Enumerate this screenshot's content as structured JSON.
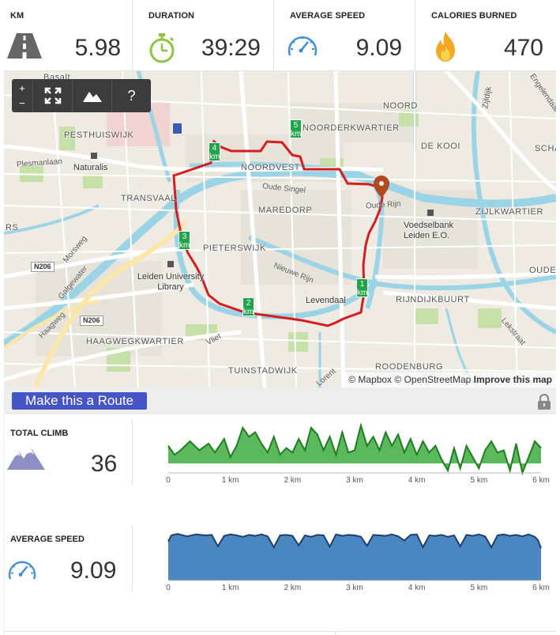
{
  "stats": {
    "km": {
      "label": "KM",
      "value": "5.98",
      "icon": "road-icon"
    },
    "duration": {
      "label": "DURATION",
      "value": "39:29",
      "icon": "stopwatch-icon"
    },
    "avg_speed": {
      "label": "AVERAGE SPEED",
      "value": "9.09",
      "icon": "speedometer-icon"
    },
    "calories": {
      "label": "CALORIES BURNED",
      "value": "470",
      "icon": "flame-icon"
    }
  },
  "map": {
    "controls": {
      "zoom_in": "+",
      "zoom_out": "−",
      "help": "?"
    },
    "attribution": {
      "mapbox": "© Mapbox",
      "osm": "© OpenStreetMap",
      "improve": "Improve this map"
    },
    "neighborhoods": [
      "PESTHUISWIJK",
      "NOORDERKWARTIER",
      "DE KOOI",
      "NOORDVEST",
      "TRANSVAAL",
      "MAREDORP",
      "ZIJLKWARTIER",
      "PIETERSWIJK",
      "RIJNDIJKBUURT",
      "HAAGWEGKWARTIER",
      "TUINSTADWIJK",
      "ROODENBURG",
      "NOORD",
      "SCHA",
      "OUDE",
      "RS"
    ],
    "places": [
      "Naturalis",
      "Leiden University Library",
      "Levendaal",
      "Voedselbank Leiden E.O.",
      "Basalt"
    ],
    "roads": [
      "Plesmanlaan",
      "Oude Singel",
      "Oude Rijn",
      "Nieuwe Rijn",
      "Morsweg",
      "Galgewater",
      "Haagweg",
      "Vliet",
      "Zijldijk",
      "Engelendaal",
      "Lorent",
      "Lekstraat"
    ],
    "shields": [
      "N206",
      "N206"
    ],
    "km_markers": [
      "1",
      "2",
      "3",
      "4",
      "5"
    ],
    "km_unit": "km"
  },
  "route_button": "Make this a Route",
  "climb": {
    "label": "TOTAL CLIMB",
    "value": "36",
    "icon": "mountain-icon"
  },
  "speed": {
    "label": "AVERAGE SPEED",
    "value": "9.09",
    "icon": "speedometer-icon"
  },
  "chart_data": [
    {
      "type": "area",
      "xlabel": "",
      "ylabel": "",
      "x_ticks": [
        "0",
        "1 km",
        "2 km",
        "3 km",
        "4 km",
        "5 km",
        "6 km"
      ],
      "xlim": [
        0,
        6
      ],
      "color": "#5cb85c",
      "line_color": "#1e7e1e",
      "x": [
        0,
        0.1,
        0.2,
        0.35,
        0.5,
        0.65,
        0.75,
        0.9,
        1.0,
        1.1,
        1.2,
        1.3,
        1.4,
        1.5,
        1.6,
        1.7,
        1.8,
        1.9,
        2.0,
        2.1,
        2.2,
        2.3,
        2.4,
        2.5,
        2.6,
        2.7,
        2.8,
        2.9,
        3.0,
        3.1,
        3.2,
        3.3,
        3.4,
        3.5,
        3.6,
        3.7,
        3.8,
        3.9,
        4.0,
        4.1,
        4.2,
        4.3,
        4.4,
        4.5,
        4.6,
        4.7,
        4.8,
        4.9,
        5.0,
        5.1,
        5.2,
        5.3,
        5.4,
        5.5,
        5.6,
        5.7,
        5.8,
        5.9,
        6.0
      ],
      "values": [
        7,
        3,
        5,
        9,
        5,
        8,
        4,
        10,
        2,
        7,
        15,
        11,
        13,
        8,
        4,
        11,
        3,
        6,
        4,
        10,
        5,
        15,
        12,
        5,
        11,
        3,
        13,
        4,
        5,
        16,
        7,
        11,
        5,
        13,
        7,
        12,
        4,
        10,
        3,
        9,
        4,
        7,
        1,
        -4,
        6,
        -3,
        7,
        2,
        -3,
        5,
        9,
        4,
        5,
        -4,
        8,
        -5,
        2,
        9,
        6
      ]
    },
    {
      "type": "area",
      "xlabel": "",
      "ylabel": "",
      "x_ticks": [
        "0",
        "1 km",
        "2 km",
        "3 km",
        "4 km",
        "5 km",
        "6 km"
      ],
      "xlim": [
        0,
        6
      ],
      "color": "#4a86c0",
      "line_color": "#1f3f6e",
      "x": [
        0,
        0.05,
        0.15,
        0.3,
        0.45,
        0.6,
        0.7,
        0.8,
        0.9,
        1.0,
        1.1,
        1.2,
        1.3,
        1.4,
        1.5,
        1.6,
        1.7,
        1.8,
        1.9,
        2.0,
        2.1,
        2.2,
        2.3,
        2.4,
        2.5,
        2.6,
        2.7,
        2.8,
        2.9,
        3.0,
        3.1,
        3.2,
        3.3,
        3.4,
        3.5,
        3.6,
        3.7,
        3.8,
        3.9,
        4.0,
        4.1,
        4.2,
        4.3,
        4.4,
        4.5,
        4.6,
        4.7,
        4.8,
        4.9,
        5.0,
        5.1,
        5.2,
        5.3,
        5.4,
        5.5,
        5.6,
        5.7,
        5.8,
        5.9,
        5.95,
        6.0
      ],
      "values": [
        8.2,
        9.5,
        9.8,
        9.3,
        9.7,
        9.5,
        9.6,
        7.2,
        9.4,
        9.7,
        9.5,
        9.2,
        9.6,
        9.4,
        9.7,
        9.3,
        7.0,
        9.5,
        9.6,
        9.4,
        7.4,
        9.5,
        9.2,
        9.6,
        9.5,
        7.1,
        9.7,
        9.4,
        9.6,
        9.5,
        9.2,
        7.3,
        9.6,
        9.5,
        9.4,
        9.7,
        9.3,
        8.4,
        9.6,
        9.7,
        7.0,
        9.5,
        9.4,
        9.6,
        9.2,
        9.5,
        7.2,
        9.6,
        9.4,
        9.7,
        9.3,
        7.0,
        9.5,
        9.7,
        9.4,
        9.6,
        9.3,
        9.7,
        9.2,
        8.5,
        6.8
      ],
      "ylim": [
        0,
        10
      ]
    }
  ]
}
